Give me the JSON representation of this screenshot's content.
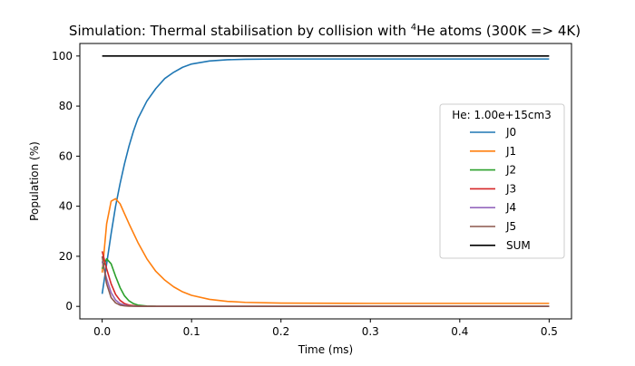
{
  "chart_data": {
    "type": "line",
    "title_prefix": "Simulation: Thermal stabilisation by collision with ",
    "title_sup": "4",
    "title_suffix": "He atoms (300K => 4K)",
    "xlabel": "Time (ms)",
    "ylabel": "Population (%)",
    "xlim": [
      -0.025,
      0.525
    ],
    "ylim": [
      -5,
      105
    ],
    "xticks": [
      0.0,
      0.1,
      0.2,
      0.3,
      0.4,
      0.5
    ],
    "xtick_labels": [
      "0.0",
      "0.1",
      "0.2",
      "0.3",
      "0.4",
      "0.5"
    ],
    "yticks": [
      0,
      20,
      40,
      60,
      80,
      100
    ],
    "ytick_labels": [
      "0",
      "20",
      "40",
      "60",
      "80",
      "100"
    ],
    "grid": false,
    "legend_title": "He: 1.00e+15cm3",
    "legend_position": "center-right",
    "series": [
      {
        "name": "J0",
        "color": "#1f77b4",
        "x": [
          0.0,
          0.005,
          0.01,
          0.015,
          0.02,
          0.025,
          0.03,
          0.035,
          0.04,
          0.05,
          0.06,
          0.07,
          0.08,
          0.09,
          0.1,
          0.12,
          0.14,
          0.16,
          0.2,
          0.3,
          0.4,
          0.5
        ],
        "y": [
          5,
          17,
          29,
          40,
          49,
          57,
          64,
          70,
          75,
          82,
          87,
          91,
          93.5,
          95.5,
          96.8,
          98.0,
          98.5,
          98.7,
          98.8,
          98.8,
          98.8,
          98.8
        ]
      },
      {
        "name": "J1",
        "color": "#ff7f0e",
        "x": [
          0.0,
          0.005,
          0.01,
          0.015,
          0.02,
          0.025,
          0.03,
          0.04,
          0.05,
          0.06,
          0.07,
          0.08,
          0.09,
          0.1,
          0.12,
          0.14,
          0.16,
          0.2,
          0.3,
          0.4,
          0.5
        ],
        "y": [
          13.5,
          33,
          42,
          43,
          41,
          37,
          33,
          25.5,
          19,
          14,
          10.5,
          7.8,
          5.8,
          4.4,
          2.8,
          2.0,
          1.6,
          1.3,
          1.2,
          1.2,
          1.2
        ]
      },
      {
        "name": "J2",
        "color": "#2ca02c",
        "x": [
          0.0,
          0.005,
          0.01,
          0.015,
          0.02,
          0.025,
          0.03,
          0.035,
          0.04,
          0.05,
          0.06,
          0.1,
          0.5
        ],
        "y": [
          15,
          19,
          17,
          12,
          7.5,
          4.2,
          2.2,
          1.1,
          0.5,
          0.15,
          0.05,
          0,
          0
        ]
      },
      {
        "name": "J3",
        "color": "#d62728",
        "x": [
          0.0,
          0.005,
          0.01,
          0.015,
          0.02,
          0.025,
          0.03,
          0.04,
          0.05,
          0.1,
          0.5
        ],
        "y": [
          22,
          15,
          9,
          4.8,
          2.4,
          1.1,
          0.5,
          0.1,
          0.02,
          0,
          0
        ]
      },
      {
        "name": "J4",
        "color": "#9467bd",
        "x": [
          0.0,
          0.005,
          0.01,
          0.015,
          0.02,
          0.025,
          0.03,
          0.04,
          0.1,
          0.5
        ],
        "y": [
          18,
          11,
          5.5,
          2.5,
          1.1,
          0.5,
          0.2,
          0.05,
          0,
          0
        ]
      },
      {
        "name": "J5",
        "color": "#8c564b",
        "x": [
          0.0,
          0.005,
          0.01,
          0.015,
          0.02,
          0.025,
          0.03,
          0.04,
          0.1,
          0.5
        ],
        "y": [
          20,
          9,
          3.5,
          1.4,
          0.5,
          0.2,
          0.1,
          0.02,
          0,
          0
        ]
      },
      {
        "name": "SUM",
        "color": "#000000",
        "x": [
          0.0,
          0.5
        ],
        "y": [
          100,
          100
        ]
      }
    ]
  }
}
